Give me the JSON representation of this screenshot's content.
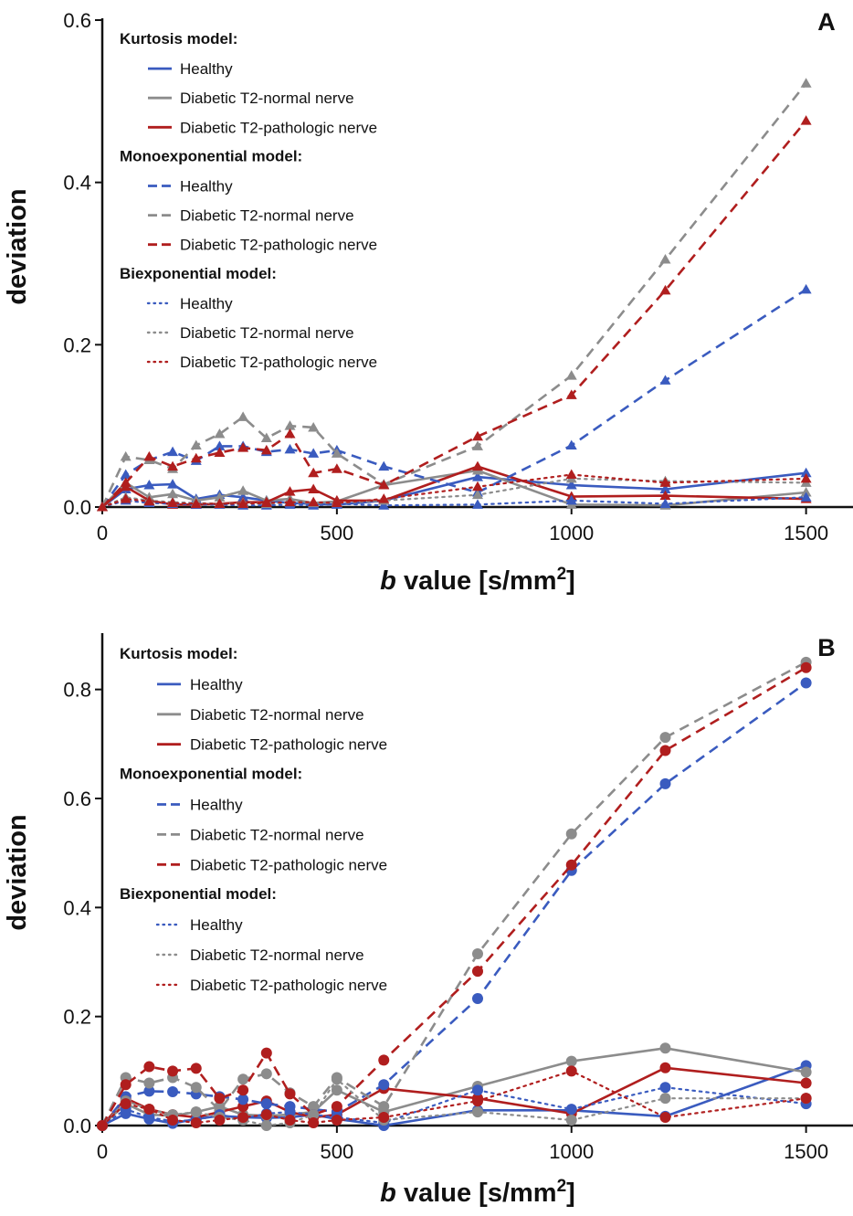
{
  "colors": {
    "healthy": "#3a5bbf",
    "normal": "#8c8c8c",
    "pathologic": "#b01e1e"
  },
  "chart_data": [
    {
      "id": "A",
      "type": "line",
      "title": "",
      "panel_letter": "A",
      "xlabel_b": "b",
      "xlabel_rest": " value [s/mm",
      "xlabel_sup": "2",
      "xlabel_close": "]",
      "ylabel": "deviation",
      "xlim": [
        0,
        1600
      ],
      "ylim": [
        0,
        0.6
      ],
      "xticks": [
        0,
        500,
        1000,
        1500
      ],
      "xtick_labels": [
        "0",
        "500",
        "1000",
        "1500"
      ],
      "yticks": [
        0.0,
        0.2,
        0.4,
        0.6
      ],
      "ytick_labels": [
        "0.0",
        "0.2",
        "0.4",
        "0.6"
      ],
      "marker": "triangle",
      "legend": {
        "placement": "top-left",
        "groups": [
          {
            "heading": "Kurtosis model:",
            "style": "solid",
            "entries": [
              {
                "label": "Healthy",
                "color": "#3a5bbf"
              },
              {
                "label": "Diabetic T2-normal nerve",
                "color": "#8c8c8c"
              },
              {
                "label": "Diabetic T2-pathologic nerve",
                "color": "#b01e1e"
              }
            ]
          },
          {
            "heading": "Monoexponential model:",
            "style": "dashed",
            "entries": [
              {
                "label": "Healthy",
                "color": "#3a5bbf"
              },
              {
                "label": "Diabetic T2-normal nerve",
                "color": "#8c8c8c"
              },
              {
                "label": "Diabetic T2-pathologic nerve",
                "color": "#b01e1e"
              }
            ]
          },
          {
            "heading": "Biexponential model:",
            "style": "dotted",
            "entries": [
              {
                "label": "Healthy",
                "color": "#3a5bbf"
              },
              {
                "label": "Diabetic T2-normal nerve",
                "color": "#8c8c8c"
              },
              {
                "label": "Diabetic T2-pathologic nerve",
                "color": "#b01e1e"
              }
            ]
          }
        ]
      },
      "series": [
        {
          "model": "Kurtosis model",
          "group": "Healthy",
          "color": "#3a5bbf",
          "style": "solid",
          "x": [
            0,
            50,
            100,
            150,
            200,
            250,
            300,
            350,
            400,
            450,
            500,
            600,
            800,
            1000,
            1200,
            1500
          ],
          "y": [
            0.0,
            0.022,
            0.027,
            0.028,
            0.01,
            0.015,
            0.012,
            0.008,
            0.005,
            0.004,
            0.003,
            0.008,
            0.037,
            0.027,
            0.022,
            0.042
          ]
        },
        {
          "model": "Kurtosis model",
          "group": "Diabetic T2-normal nerve",
          "color": "#8c8c8c",
          "style": "solid",
          "x": [
            0,
            50,
            100,
            150,
            200,
            250,
            300,
            350,
            400,
            450,
            500,
            600,
            800,
            1000,
            1200,
            1500
          ],
          "y": [
            0.0,
            0.03,
            0.012,
            0.016,
            0.008,
            0.012,
            0.02,
            0.008,
            0.01,
            0.005,
            0.007,
            0.027,
            0.045,
            0.003,
            0.002,
            0.018
          ]
        },
        {
          "model": "Kurtosis model",
          "group": "Diabetic T2-pathologic nerve",
          "color": "#b01e1e",
          "style": "solid",
          "x": [
            0,
            50,
            100,
            150,
            200,
            250,
            300,
            350,
            400,
            450,
            500,
            600,
            800,
            1000,
            1200,
            1500
          ],
          "y": [
            0.0,
            0.025,
            0.008,
            0.003,
            0.003,
            0.004,
            0.006,
            0.006,
            0.019,
            0.022,
            0.008,
            0.008,
            0.05,
            0.013,
            0.014,
            0.01
          ]
        },
        {
          "model": "Monoexponential model",
          "group": "Healthy",
          "color": "#3a5bbf",
          "style": "dashed",
          "x": [
            0,
            50,
            100,
            150,
            200,
            250,
            300,
            350,
            400,
            450,
            500,
            600,
            800,
            1000,
            1200,
            1500
          ],
          "y": [
            0.0,
            0.04,
            0.058,
            0.068,
            0.057,
            0.075,
            0.075,
            0.068,
            0.071,
            0.066,
            0.07,
            0.05,
            0.018,
            0.076,
            0.156,
            0.268
          ]
        },
        {
          "model": "Monoexponential model",
          "group": "Diabetic T2-normal nerve",
          "color": "#8c8c8c",
          "style": "dashed",
          "x": [
            0,
            50,
            100,
            150,
            200,
            250,
            300,
            350,
            400,
            450,
            500,
            600,
            800,
            1000,
            1200,
            1500
          ],
          "y": [
            0.0,
            0.062,
            0.058,
            0.047,
            0.076,
            0.09,
            0.111,
            0.085,
            0.1,
            0.098,
            0.066,
            0.028,
            0.075,
            0.162,
            0.305,
            0.522
          ]
        },
        {
          "model": "Monoexponential model",
          "group": "Diabetic T2-pathologic nerve",
          "color": "#b01e1e",
          "style": "dashed",
          "x": [
            0,
            50,
            100,
            150,
            200,
            250,
            300,
            350,
            400,
            450,
            500,
            600,
            800,
            1000,
            1200,
            1500
          ],
          "y": [
            0.0,
            0.03,
            0.062,
            0.05,
            0.06,
            0.067,
            0.073,
            0.07,
            0.09,
            0.042,
            0.047,
            0.027,
            0.087,
            0.138,
            0.267,
            0.476
          ]
        },
        {
          "model": "Biexponential model",
          "group": "Healthy",
          "color": "#3a5bbf",
          "style": "dotted",
          "x": [
            0,
            50,
            100,
            150,
            200,
            250,
            300,
            350,
            400,
            450,
            500,
            600,
            800,
            1000,
            1200,
            1500
          ],
          "y": [
            0.0,
            0.008,
            0.005,
            0.004,
            0.003,
            0.003,
            0.002,
            0.002,
            0.003,
            0.002,
            0.004,
            0.002,
            0.003,
            0.008,
            0.004,
            0.012
          ]
        },
        {
          "model": "Biexponential model",
          "group": "Diabetic T2-normal nerve",
          "color": "#8c8c8c",
          "style": "dotted",
          "x": [
            0,
            50,
            100,
            150,
            200,
            250,
            300,
            350,
            400,
            450,
            500,
            600,
            800,
            1000,
            1200,
            1500
          ],
          "y": [
            0.0,
            0.012,
            0.008,
            0.006,
            0.005,
            0.004,
            0.005,
            0.004,
            0.006,
            0.005,
            0.005,
            0.008,
            0.015,
            0.035,
            0.032,
            0.03
          ]
        },
        {
          "model": "Biexponential model",
          "group": "Diabetic T2-pathologic nerve",
          "color": "#b01e1e",
          "style": "dotted",
          "x": [
            0,
            50,
            100,
            150,
            200,
            250,
            300,
            350,
            400,
            450,
            500,
            600,
            800,
            1000,
            1200,
            1500
          ],
          "y": [
            0.0,
            0.01,
            0.007,
            0.005,
            0.004,
            0.004,
            0.004,
            0.005,
            0.006,
            0.006,
            0.005,
            0.01,
            0.025,
            0.04,
            0.03,
            0.035
          ]
        }
      ]
    },
    {
      "id": "B",
      "type": "line",
      "title": "",
      "panel_letter": "B",
      "xlabel_b": "b",
      "xlabel_rest": " value [s/mm",
      "xlabel_sup": "2",
      "xlabel_close": "]",
      "ylabel": "deviation",
      "xlim": [
        0,
        1600
      ],
      "ylim": [
        0,
        0.9
      ],
      "xticks": [
        0,
        500,
        1000,
        1500
      ],
      "xtick_labels": [
        "0",
        "500",
        "1000",
        "1500"
      ],
      "yticks": [
        0.0,
        0.2,
        0.4,
        0.6,
        0.8
      ],
      "ytick_labels": [
        "0.0",
        "0.2",
        "0.4",
        "0.6",
        "0.8"
      ],
      "marker": "circle",
      "legend": {
        "placement": "top-left",
        "groups": [
          {
            "heading": "Kurtosis model:",
            "style": "solid",
            "entries": [
              {
                "label": "Healthy",
                "color": "#3a5bbf"
              },
              {
                "label": "Diabetic T2-normal nerve",
                "color": "#8c8c8c"
              },
              {
                "label": "Diabetic T2-pathologic nerve",
                "color": "#b01e1e"
              }
            ]
          },
          {
            "heading": "Monoexponential model:",
            "style": "dashed",
            "entries": [
              {
                "label": "Healthy",
                "color": "#3a5bbf"
              },
              {
                "label": "Diabetic T2-normal nerve",
                "color": "#8c8c8c"
              },
              {
                "label": "Diabetic T2-pathologic nerve",
                "color": "#b01e1e"
              }
            ]
          },
          {
            "heading": "Biexponential model:",
            "style": "dotted",
            "entries": [
              {
                "label": "Healthy",
                "color": "#3a5bbf"
              },
              {
                "label": "Diabetic T2-normal nerve",
                "color": "#8c8c8c"
              },
              {
                "label": "Diabetic T2-pathologic nerve",
                "color": "#b01e1e"
              }
            ]
          }
        ]
      },
      "series": [
        {
          "model": "Kurtosis model",
          "group": "Healthy",
          "color": "#3a5bbf",
          "style": "solid",
          "x": [
            0,
            50,
            100,
            150,
            200,
            250,
            300,
            350,
            400,
            450,
            500,
            600,
            800,
            1000,
            1200,
            1500
          ],
          "y": [
            0.0,
            0.022,
            0.012,
            0.004,
            0.012,
            0.018,
            0.015,
            0.014,
            0.015,
            0.02,
            0.012,
            0.0,
            0.028,
            0.028,
            0.017,
            0.11
          ]
        },
        {
          "model": "Kurtosis model",
          "group": "Diabetic T2-normal nerve",
          "color": "#8c8c8c",
          "style": "solid",
          "x": [
            0,
            50,
            100,
            150,
            200,
            250,
            300,
            350,
            400,
            450,
            500,
            600,
            800,
            1000,
            1200,
            1500
          ],
          "y": [
            0.0,
            0.04,
            0.02,
            0.018,
            0.025,
            0.035,
            0.02,
            0.018,
            0.02,
            0.025,
            0.065,
            0.025,
            0.072,
            0.118,
            0.142,
            0.098
          ]
        },
        {
          "model": "Kurtosis model",
          "group": "Diabetic T2-pathologic nerve",
          "color": "#b01e1e",
          "style": "solid",
          "x": [
            0,
            50,
            100,
            150,
            200,
            250,
            300,
            350,
            400,
            450,
            500,
            600,
            800,
            1000,
            1200,
            1500
          ],
          "y": [
            0.0,
            0.05,
            0.03,
            0.02,
            0.015,
            0.025,
            0.035,
            0.045,
            0.025,
            0.015,
            0.02,
            0.068,
            0.05,
            0.022,
            0.106,
            0.078
          ]
        },
        {
          "model": "Monoexponential model",
          "group": "Healthy",
          "color": "#3a5bbf",
          "style": "dashed",
          "x": [
            0,
            50,
            100,
            150,
            200,
            250,
            300,
            350,
            400,
            450,
            500,
            600,
            800,
            1000,
            1200,
            1500
          ],
          "y": [
            0.0,
            0.053,
            0.063,
            0.062,
            0.058,
            0.053,
            0.048,
            0.04,
            0.035,
            0.03,
            0.025,
            0.075,
            0.233,
            0.468,
            0.627,
            0.812
          ]
        },
        {
          "model": "Monoexponential model",
          "group": "Diabetic T2-normal nerve",
          "color": "#8c8c8c",
          "style": "dashed",
          "x": [
            0,
            50,
            100,
            150,
            200,
            250,
            300,
            350,
            400,
            450,
            500,
            600,
            800,
            1000,
            1200,
            1500
          ],
          "y": [
            0.0,
            0.088,
            0.078,
            0.088,
            0.07,
            0.028,
            0.085,
            0.095,
            0.06,
            0.035,
            0.088,
            0.035,
            0.315,
            0.535,
            0.712,
            0.85
          ]
        },
        {
          "model": "Monoexponential model",
          "group": "Diabetic T2-pathologic nerve",
          "color": "#b01e1e",
          "style": "dashed",
          "x": [
            0,
            50,
            100,
            150,
            200,
            250,
            300,
            350,
            400,
            450,
            500,
            600,
            800,
            1000,
            1200,
            1500
          ],
          "y": [
            0.0,
            0.075,
            0.108,
            0.1,
            0.105,
            0.05,
            0.065,
            0.133,
            0.058,
            0.02,
            0.035,
            0.12,
            0.283,
            0.478,
            0.688,
            0.84
          ]
        },
        {
          "model": "Biexponential model",
          "group": "Healthy",
          "color": "#3a5bbf",
          "style": "dotted",
          "x": [
            0,
            50,
            100,
            150,
            200,
            250,
            300,
            350,
            400,
            450,
            500,
            600,
            800,
            1000,
            1200,
            1500
          ],
          "y": [
            0.0,
            0.03,
            0.015,
            0.008,
            0.01,
            0.02,
            0.012,
            0.022,
            0.025,
            0.02,
            0.015,
            0.005,
            0.065,
            0.03,
            0.07,
            0.04
          ]
        },
        {
          "model": "Biexponential model",
          "group": "Diabetic T2-normal nerve",
          "color": "#8c8c8c",
          "style": "dotted",
          "x": [
            0,
            50,
            100,
            150,
            200,
            250,
            300,
            350,
            400,
            450,
            500,
            600,
            800,
            1000,
            1200,
            1500
          ],
          "y": [
            0.0,
            0.045,
            0.03,
            0.02,
            0.025,
            0.015,
            0.01,
            0.0,
            0.005,
            0.02,
            0.085,
            0.01,
            0.025,
            0.01,
            0.05,
            0.05
          ]
        },
        {
          "model": "Biexponential model",
          "group": "Diabetic T2-pathologic nerve",
          "color": "#b01e1e",
          "style": "dotted",
          "x": [
            0,
            50,
            100,
            150,
            200,
            250,
            300,
            350,
            400,
            450,
            500,
            600,
            800,
            1000,
            1200,
            1500
          ],
          "y": [
            0.0,
            0.04,
            0.03,
            0.01,
            0.005,
            0.01,
            0.015,
            0.02,
            0.01,
            0.005,
            0.01,
            0.015,
            0.045,
            0.1,
            0.015,
            0.05
          ]
        }
      ]
    }
  ]
}
